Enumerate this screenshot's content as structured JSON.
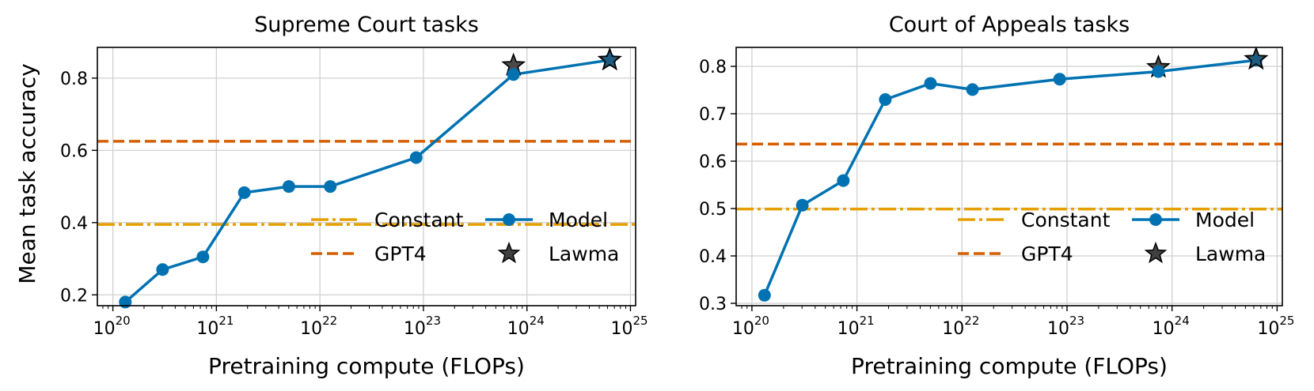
{
  "figure": {
    "shared_ylabel": "Mean task accuracy"
  },
  "colors": {
    "model": "#0072B2",
    "gpt4": "#D55E00",
    "constant": "#E69F00",
    "lawma": "#404040",
    "grid": "#d0d0d0"
  },
  "legend_labels": {
    "constant": "Constant",
    "gpt4": "GPT4",
    "model": "Model",
    "lawma": "Lawma"
  },
  "chart_data": [
    {
      "type": "line",
      "title": "Supreme Court tasks",
      "xlabel": "Pretraining compute (FLOPs)",
      "ylabel": "Mean task accuracy",
      "xscale": "log",
      "xlim_log10": [
        19.85,
        25.05
      ],
      "ylim": [
        0.17,
        0.885
      ],
      "yticks": [
        0.2,
        0.4,
        0.6,
        0.8
      ],
      "ytick_labels": [
        "0.2",
        "0.4",
        "0.6",
        "0.8"
      ],
      "xticks_log10": [
        20,
        21,
        22,
        23,
        24,
        25
      ],
      "xtick_labels": [
        "10",
        "10",
        "10",
        "10",
        "10",
        "10"
      ],
      "xtick_exponents": [
        "20",
        "21",
        "22",
        "23",
        "24",
        "25"
      ],
      "grid": true,
      "legend_position": "lower-right",
      "series": [
        {
          "name": "Model",
          "x_log10": [
            20.12,
            20.48,
            20.87,
            21.27,
            21.7,
            22.1,
            22.93,
            23.87,
            24.8
          ],
          "y": [
            0.18,
            0.27,
            0.305,
            0.483,
            0.5,
            0.5,
            0.58,
            0.81,
            0.85
          ]
        }
      ],
      "lawma": {
        "name": "Lawma",
        "x_log10": [
          23.87,
          24.8
        ],
        "y": [
          0.835,
          0.85
        ]
      },
      "hlines": [
        {
          "name": "GPT4",
          "y": 0.625,
          "style": "dashed"
        },
        {
          "name": "Constant",
          "y": 0.395,
          "style": "dashdot"
        }
      ]
    },
    {
      "type": "line",
      "title": "Court of Appeals tasks",
      "xlabel": "Pretraining compute (FLOPs)",
      "ylabel": "",
      "xscale": "log",
      "xlim_log10": [
        19.85,
        25.05
      ],
      "ylim": [
        0.295,
        0.84
      ],
      "yticks": [
        0.3,
        0.4,
        0.5,
        0.6,
        0.7,
        0.8
      ],
      "ytick_labels": [
        "0.3",
        "0.4",
        "0.5",
        "0.6",
        "0.7",
        "0.8"
      ],
      "xticks_log10": [
        20,
        21,
        22,
        23,
        24,
        25
      ],
      "xtick_labels": [
        "10",
        "10",
        "10",
        "10",
        "10",
        "10"
      ],
      "xtick_exponents": [
        "20",
        "21",
        "22",
        "23",
        "24",
        "25"
      ],
      "grid": true,
      "legend_position": "lower-right",
      "series": [
        {
          "name": "Model",
          "x_log10": [
            20.12,
            20.48,
            20.87,
            21.27,
            21.7,
            22.1,
            22.93,
            23.87,
            24.8
          ],
          "y": [
            0.317,
            0.507,
            0.559,
            0.73,
            0.764,
            0.751,
            0.773,
            0.789,
            0.813
          ]
        }
      ],
      "lawma": {
        "name": "Lawma",
        "x_log10": [
          23.87,
          24.8
        ],
        "y": [
          0.798,
          0.815
        ]
      },
      "hlines": [
        {
          "name": "GPT4",
          "y": 0.636,
          "style": "dashed"
        },
        {
          "name": "Constant",
          "y": 0.499,
          "style": "dashdot"
        }
      ]
    }
  ]
}
